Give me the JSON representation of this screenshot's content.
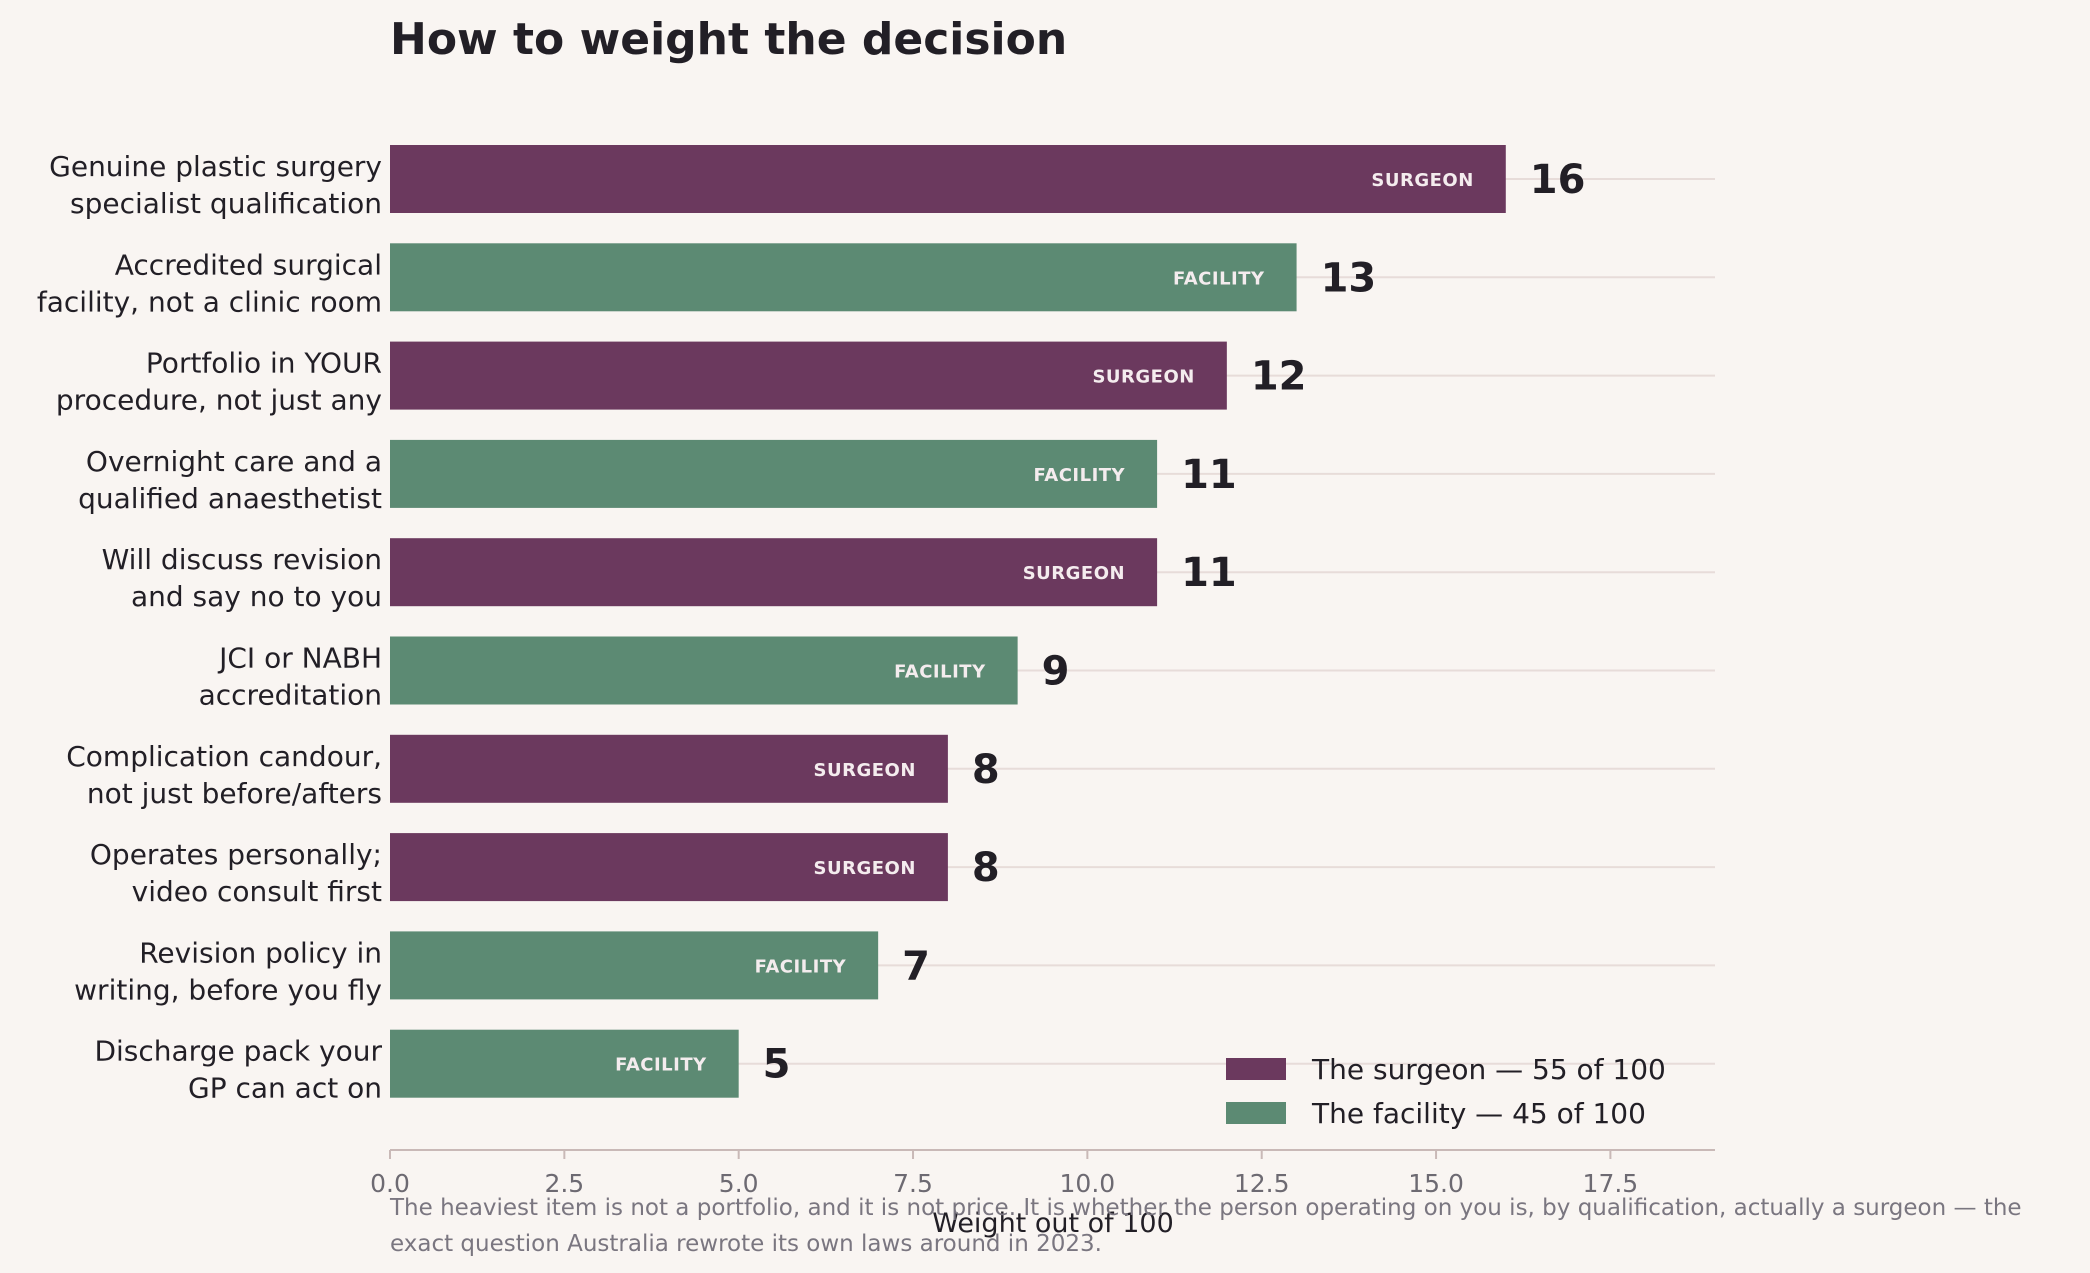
{
  "chart_data": {
    "type": "bar",
    "orientation": "horizontal",
    "title": "How to weight the decision",
    "xlabel": "Weight out of 100",
    "ylabel": "",
    "xlim": [
      0,
      19
    ],
    "xticks": [
      "0.0",
      "2.5",
      "5.0",
      "7.5",
      "10.0",
      "12.5",
      "15.0",
      "17.5"
    ],
    "xtick_values": [
      0,
      2.5,
      5,
      7.5,
      10,
      12.5,
      15,
      17.5
    ],
    "grid": "horizontal lines at each bar",
    "legend_position": "bottom-right",
    "groups": {
      "surgeon": {
        "tag": "SURGEON",
        "color": "#6b395e",
        "legend": "The surgeon — 55 of 100"
      },
      "facility": {
        "tag": "FACILITY",
        "color": "#5c8a73",
        "legend": "The facility — 45 of 100"
      }
    },
    "bars": [
      {
        "label": [
          "Genuine plastic surgery",
          "specialist qualification"
        ],
        "value": 16,
        "value_label": "16",
        "group": "surgeon"
      },
      {
        "label": [
          "Accredited surgical",
          "facility, not a clinic room"
        ],
        "value": 13,
        "value_label": "13",
        "group": "facility"
      },
      {
        "label": [
          "Portfolio in YOUR",
          "procedure, not just any"
        ],
        "value": 12,
        "value_label": "12",
        "group": "surgeon"
      },
      {
        "label": [
          "Overnight care and a",
          "qualified anaesthetist"
        ],
        "value": 11,
        "value_label": "11",
        "group": "facility"
      },
      {
        "label": [
          "Will discuss revision",
          "and say no to you"
        ],
        "value": 11,
        "value_label": "11",
        "group": "surgeon"
      },
      {
        "label": [
          "JCI or NABH",
          "accreditation"
        ],
        "value": 9,
        "value_label": "9",
        "group": "facility"
      },
      {
        "label": [
          "Complication candour,",
          "not just before/afters"
        ],
        "value": 8,
        "value_label": "8",
        "group": "surgeon"
      },
      {
        "label": [
          "Operates personally;",
          "video consult first"
        ],
        "value": 8,
        "value_label": "8",
        "group": "surgeon"
      },
      {
        "label": [
          "Revision policy in",
          "writing, before you fly"
        ],
        "value": 7,
        "value_label": "7",
        "group": "facility"
      },
      {
        "label": [
          "Discharge pack your",
          "GP can act on"
        ],
        "value": 5,
        "value_label": "5",
        "group": "facility"
      }
    ],
    "footnote": [
      "The heaviest item is not a portfolio, and it is not price. It is whether the person operating on you is, by qualification, actually a surgeon — the",
      "exact question Australia rewrote its own laws around in 2023."
    ]
  }
}
